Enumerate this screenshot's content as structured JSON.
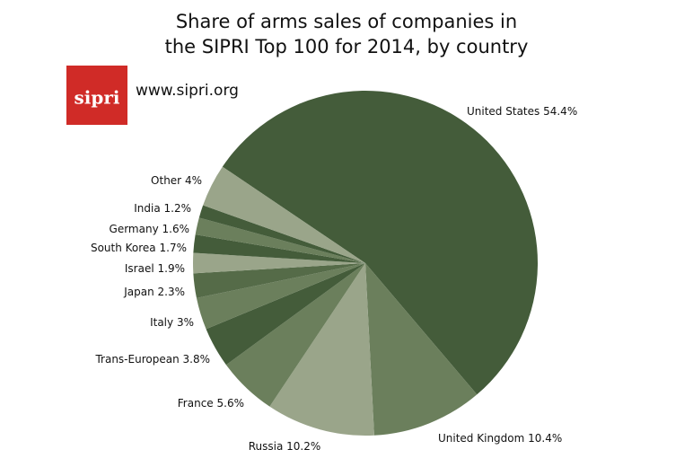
{
  "chart_data": {
    "type": "pie",
    "title": [
      "Share of arms sales of companies in",
      "the SIPRI Top 100 for 2014, by country"
    ],
    "categories": [
      "United States",
      "United Kingdom",
      "Russia",
      "France",
      "Trans-European",
      "Italy",
      "Japan",
      "Israel",
      "South Korea",
      "Germany",
      "India",
      "Other"
    ],
    "values": [
      54.4,
      10.4,
      10.2,
      5.6,
      3.8,
      3,
      2.3,
      1.9,
      1.7,
      1.6,
      1.2,
      4
    ],
    "value_labels": [
      "54.4%",
      "10.4%",
      "10.2%",
      "5.6%",
      "3.8%",
      "3%",
      "2.3%",
      "1.9%",
      "1.7%",
      "1.6%",
      "1.2%",
      "4%"
    ],
    "colors": [
      "#445c3a",
      "#6b7f5c",
      "#9aa58a",
      "#6b7f5c",
      "#445c3a",
      "#6b7f5c",
      "#556b48",
      "#9aa58a",
      "#445c3a",
      "#6b7f5c",
      "#445c3a",
      "#9aa58a"
    ]
  },
  "logo": "sipri",
  "website": "www.sipri.org"
}
